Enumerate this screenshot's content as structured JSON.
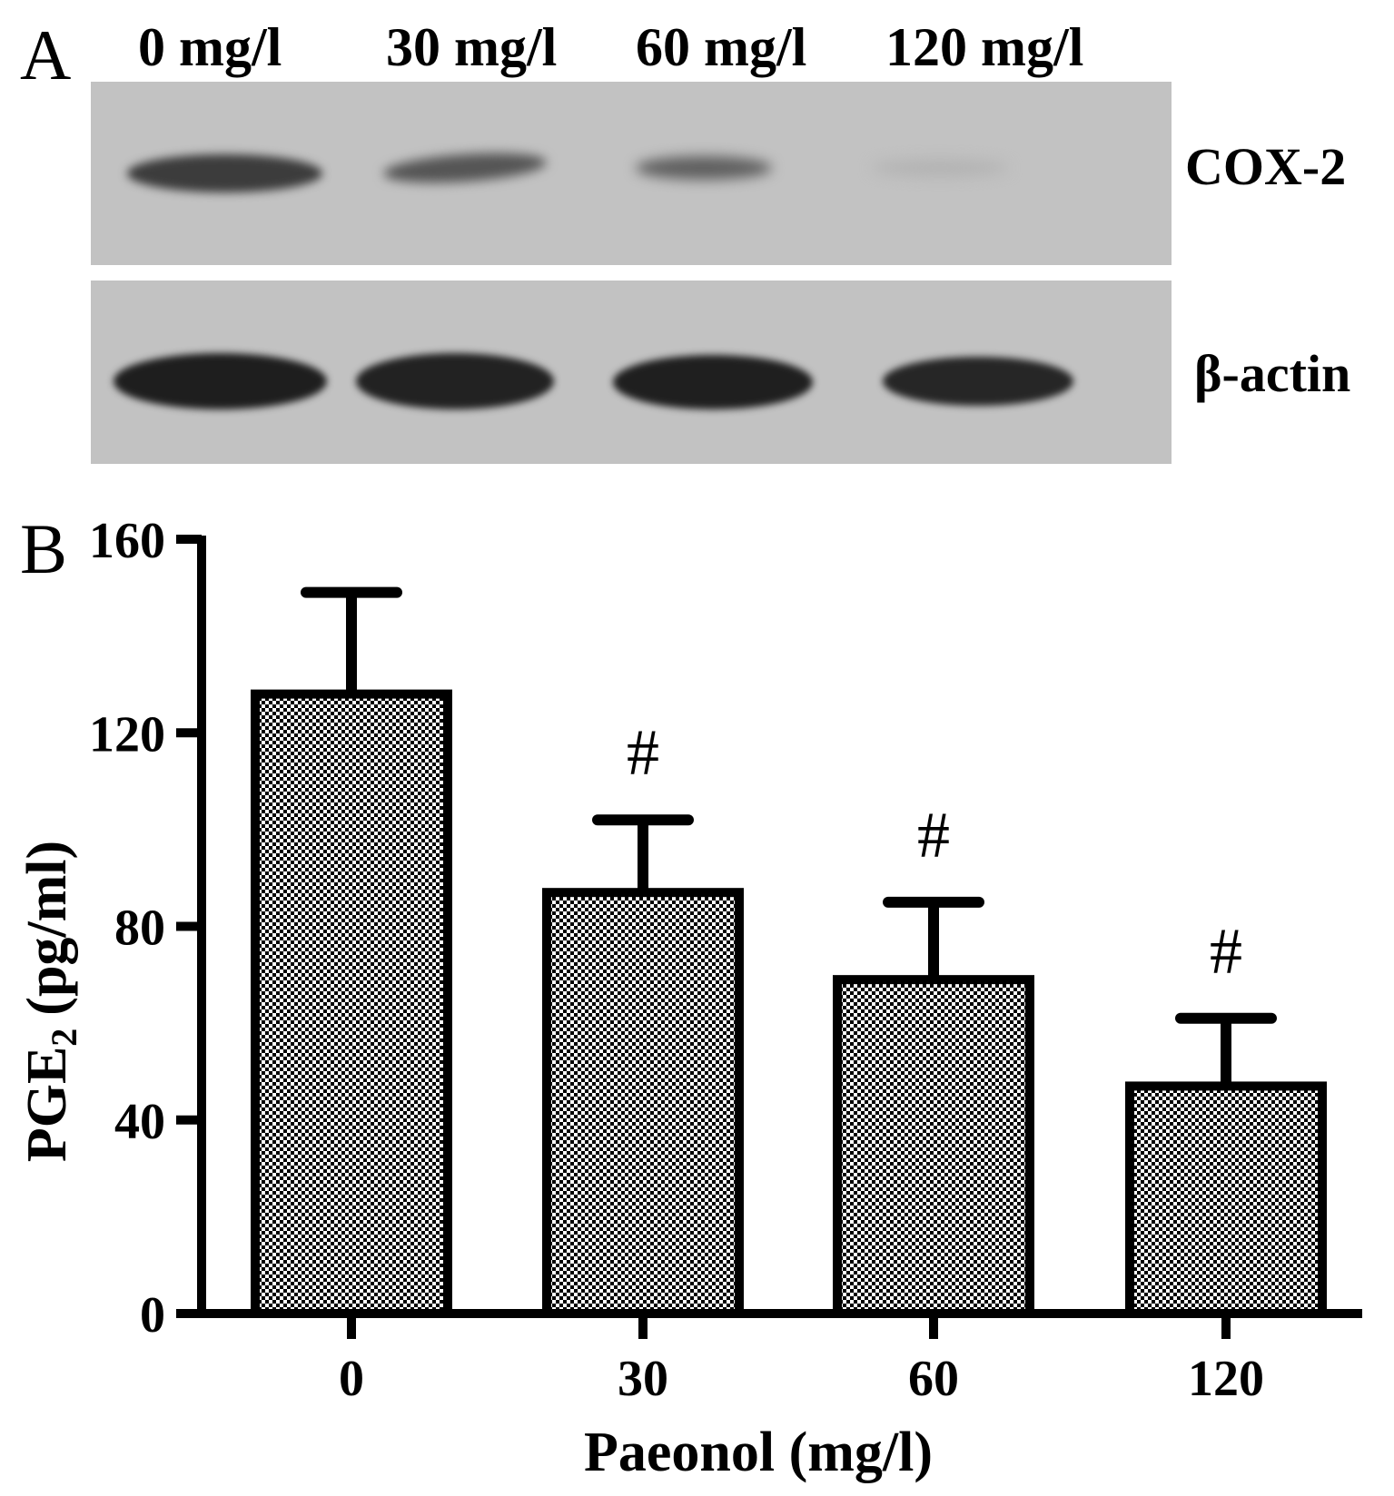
{
  "panel_a": {
    "label": "A",
    "doses": [
      "0 mg/l",
      "30 mg/l",
      "60 mg/l",
      "120 mg/l"
    ],
    "proteins": [
      "COX-2",
      "β-actin"
    ]
  },
  "panel_b": {
    "label": "B"
  },
  "chart_data": {
    "type": "bar",
    "categories": [
      "0",
      "30",
      "60",
      "120"
    ],
    "values": [
      128,
      87,
      69,
      47
    ],
    "error_upper": [
      149,
      102,
      85,
      61
    ],
    "annotations": [
      "",
      "#",
      "#",
      "#"
    ],
    "xlabel": "Paeonol (mg/l)",
    "ylabel": "PGE",
    "ylabel_subscript": "2",
    "ylabel_unit": "(pg/ml)",
    "ylim": [
      0,
      160
    ],
    "yticks": [
      0,
      40,
      80,
      120,
      160
    ],
    "grid": false,
    "bar_fill": "checkered",
    "colors": {
      "bar_edge": "#000000",
      "bar_pattern": "#000000",
      "background": "#ffffff"
    }
  }
}
